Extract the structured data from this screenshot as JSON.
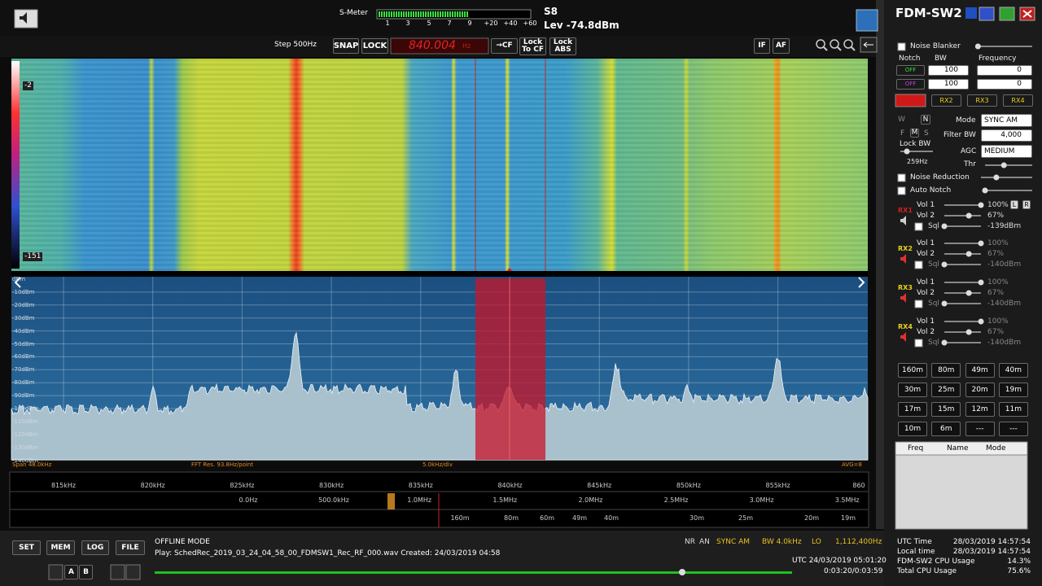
{
  "top": {
    "smeter_label": "S-Meter",
    "smeter_scale": [
      "1",
      "3",
      "5",
      "7",
      "9",
      "+20",
      "+40",
      "+60"
    ],
    "s_value": "S8",
    "level": "Lev -74.8dBm"
  },
  "toolbar": {
    "step": "Step 500Hz",
    "snap": "SNAP",
    "lock": "LOCK",
    "frequency": "840.004",
    "freq_unit": "Hz",
    "to_cf": "→CF",
    "lock_to_cf": "Lock To CF",
    "lock_abs": "Lock ABS",
    "if": "IF",
    "af": "AF"
  },
  "waterfall": {
    "max": "-2",
    "min": "-151"
  },
  "spectrum": {
    "db_labels": [
      "dBm",
      "-10dBm",
      "-20dBm",
      "-30dBm",
      "-40dBm",
      "-50dBm",
      "-60dBm",
      "-70dBm",
      "-80dBm",
      "-90dBm",
      "-100dBm",
      "-110dBm",
      "-120dBm",
      "-130dBm",
      "-140dBm"
    ],
    "span": "Span 48.0kHz",
    "fft": "FFT Res. 93.8Hz/point",
    "div": "5.0kHz/div",
    "avg": "AVG=8"
  },
  "scale": {
    "khz": [
      "815kHz",
      "820kHz",
      "825kHz",
      "830kHz",
      "835kHz",
      "840kHz",
      "845kHz",
      "850kHz",
      "855kHz",
      "860"
    ],
    "mhz": [
      "0.0Hz",
      "500.0kHz",
      "1.0MHz",
      "1.5MHz",
      "2.0MHz",
      "2.5MHz",
      "3.0MHz",
      "3.5MHz"
    ],
    "bands": [
      "160m",
      "80m",
      "60m",
      "49m",
      "40m",
      "30m",
      "25m",
      "20m",
      "19m"
    ]
  },
  "bottom": {
    "buttons": [
      "SET",
      "MEM",
      "LOG",
      "FILE"
    ],
    "a": "A",
    "b": "B",
    "mode": "OFFLINE MODE",
    "play": "Play: SchedRec_2019_03_24_04_58_00_FDMSW1_Rec_RF_000.wav Created: 24/03/2019 04:58",
    "nr": "NR",
    "an": "AN",
    "demod": "SYNC AM",
    "bw": "BW 4.0kHz",
    "lo": "LO",
    "lo_freq": "1,112,400Hz",
    "utc": "UTC 24/03/2019 05:01:20",
    "time": "0:03:20/0:03:59"
  },
  "panel": {
    "title": "FDM-SW2",
    "noise_blanker": "Noise Blanker",
    "notch": "Notch",
    "bw": "BW",
    "frequency": "Frequency",
    "notch_rows": [
      {
        "state": "OFF",
        "bw": "100",
        "freq": "0"
      },
      {
        "state": "OFF",
        "bw": "100",
        "freq": "0"
      }
    ],
    "rx_tabs": [
      "RX2",
      "RX3",
      "RX4"
    ],
    "w": "W",
    "n": "N",
    "mode_label": "Mode",
    "mode": "SYNC AM",
    "f": "F",
    "m": "M",
    "s": "S",
    "filter_bw_label": "Filter BW",
    "filter_bw": "4,000",
    "lock_bw": "Lock BW",
    "agc_label": "AGC",
    "agc": "MEDIUM",
    "lock_bw_value": "259Hz",
    "thr": "Thr",
    "noise_reduction": "Noise Reduction",
    "auto_notch": "Auto Notch",
    "rx": [
      {
        "name": "RX1",
        "vol1": "Vol 1",
        "vol1_value": "100%",
        "vol2": "Vol 2",
        "vol2_value": "67%",
        "sql": "Sql",
        "sql_value": "-139dBm"
      },
      {
        "name": "RX2",
        "vol1": "Vol 1",
        "vol1_value": "100%",
        "vol2": "Vol 2",
        "vol2_value": "67%",
        "sql": "Sql",
        "sql_value": "-140dBm"
      },
      {
        "name": "RX3",
        "vol1": "Vol 1",
        "vol1_value": "100%",
        "vol2": "Vol 2",
        "vol2_value": "67%",
        "sql": "Sql",
        "sql_value": "-140dBm"
      },
      {
        "name": "RX4",
        "vol1": "Vol 1",
        "vol1_value": "100%",
        "vol2": "Vol 2",
        "vol2_value": "67%",
        "sql": "Sql",
        "sql_value": "-140dBm"
      }
    ],
    "l": "L",
    "r": "R",
    "band_buttons": [
      "160m",
      "80m",
      "49m",
      "40m",
      "30m",
      "25m",
      "20m",
      "19m",
      "17m",
      "15m",
      "12m",
      "11m",
      "10m",
      "6m",
      "---",
      "---"
    ],
    "memory_headers": [
      "Freq",
      "Name",
      "Mode"
    ],
    "info": [
      {
        "label": "UTC Time",
        "value": "28/03/2019 14:57:54"
      },
      {
        "label": "Local time",
        "value": "28/03/2019 14:57:54"
      },
      {
        "label": "FDM-SW2 CPU Usage",
        "value": "14.3%"
      },
      {
        "label": "Total CPU Usage",
        "value": "75.6%"
      }
    ]
  }
}
